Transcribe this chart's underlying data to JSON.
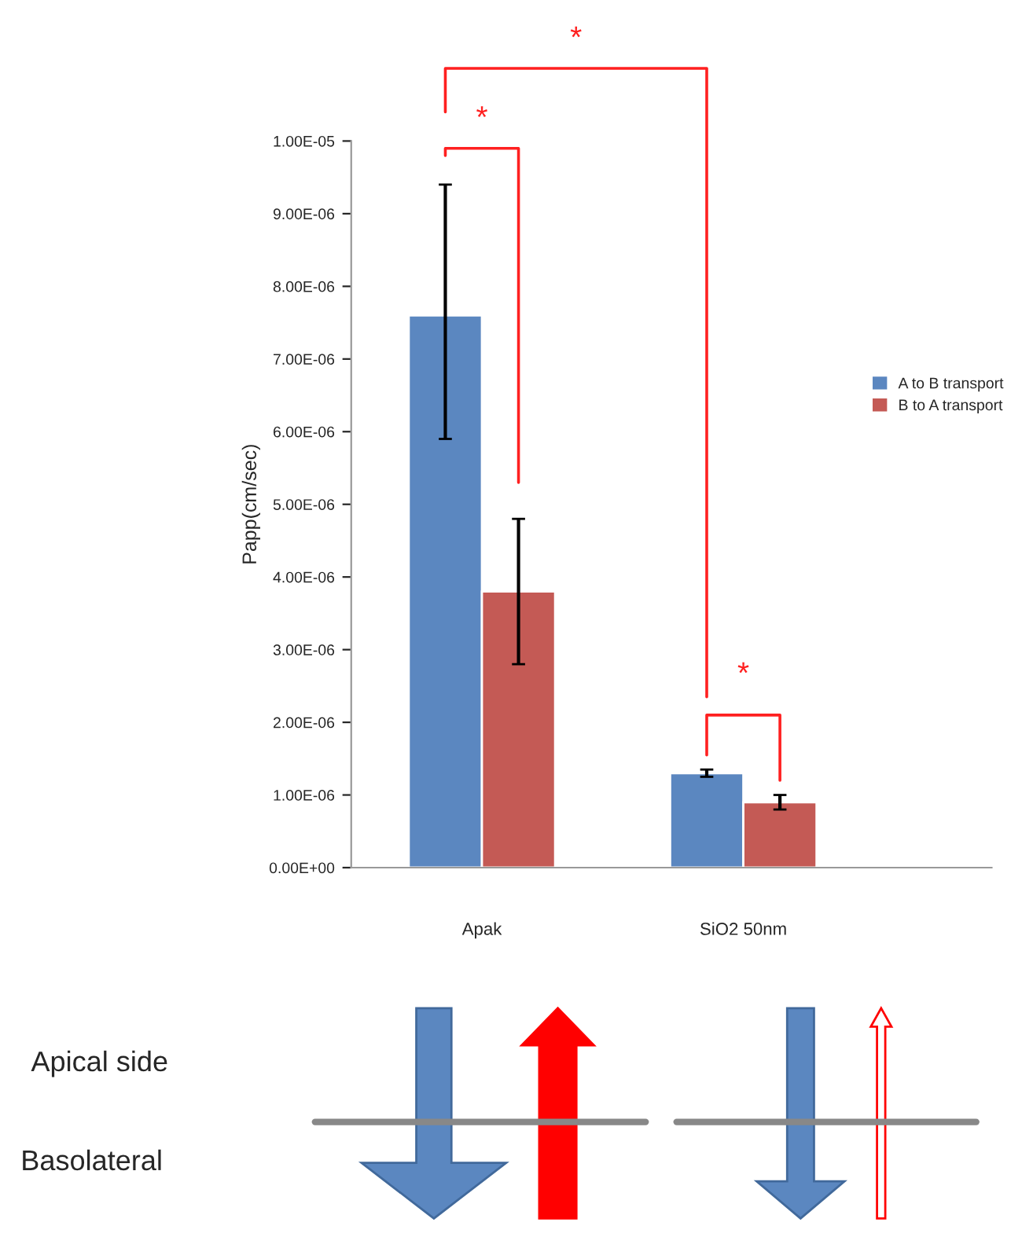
{
  "chart_data": {
    "type": "bar",
    "ylabel": "Papp(cm/sec)",
    "categories": [
      "Apak",
      "SiO2 50nm"
    ],
    "series": [
      {
        "name": "A to B transport",
        "color": "#5b87c0",
        "values": [
          7.6e-06,
          1.3e-06
        ],
        "errors": [
          [
            5.9e-06,
            9.4e-06
          ],
          [
            1.25e-06,
            1.35e-06
          ]
        ]
      },
      {
        "name": "B to A transport",
        "color": "#c45a55",
        "values": [
          3.8e-06,
          9e-07
        ],
        "errors": [
          [
            2.8e-06,
            4.8e-06
          ],
          [
            8e-07,
            1e-06
          ]
        ]
      }
    ],
    "ylim": [
      0,
      1e-05
    ],
    "yticks": [
      {
        "value": 0,
        "label": "0.00E+00"
      },
      {
        "value": 1e-06,
        "label": "1.00E-06"
      },
      {
        "value": 2e-06,
        "label": "2.00E-06"
      },
      {
        "value": 3e-06,
        "label": "3.00E-06"
      },
      {
        "value": 4e-06,
        "label": "4.00E-06"
      },
      {
        "value": 5e-06,
        "label": "5.00E-06"
      },
      {
        "value": 6e-06,
        "label": "6.00E-06"
      },
      {
        "value": 7e-06,
        "label": "7.00E-06"
      },
      {
        "value": 8e-06,
        "label": "8.00E-06"
      },
      {
        "value": 9e-06,
        "label": "9.00E-06"
      },
      {
        "value": 1e-05,
        "label": "1.00E-05"
      }
    ],
    "legend": "right",
    "grid": false,
    "annotations": [
      "*",
      "*",
      "*",
      "Apical side",
      "Basolateral"
    ]
  }
}
